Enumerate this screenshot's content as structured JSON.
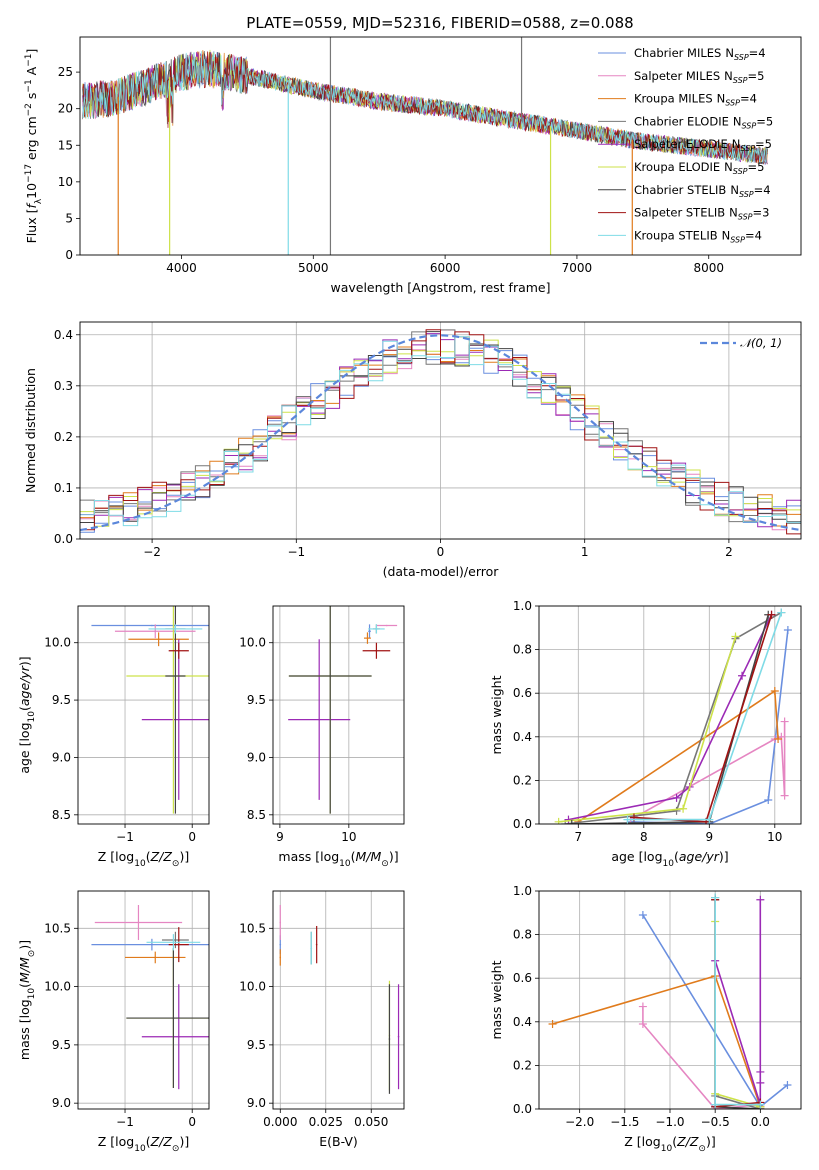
{
  "title": "PLATE=0559, MJD=52316, FIBERID=0588, z=0.088",
  "colors": {
    "Chabrier MILES": "#6a8fdf",
    "Salpeter MILES": "#e586c2",
    "Kroupa MILES": "#e07b1c",
    "Chabrier ELODIE": "#777777",
    "Salpeter ELODIE": "#9b2ab5",
    "Kroupa ELODIE": "#cde24a",
    "Chabrier STELIB": "#444444",
    "Salpeter STELIB": "#a11313",
    "Kroupa STELIB": "#7fdbe6"
  },
  "chart_data": [
    {
      "id": "spectrum",
      "type": "line",
      "xlabel": "wavelength [Angstrom, rest frame]",
      "ylabel": "Flux [f_λ10^-17 erg cm^-2 s^-1 A^-1]",
      "xlim": [
        3230,
        8700
      ],
      "ylim": [
        0,
        29.8
      ],
      "xticks": [
        "4000",
        "5000",
        "6000",
        "7000",
        "8000"
      ],
      "xtick_values": [
        4000,
        5000,
        6000,
        7000,
        8000
      ],
      "yticks": [
        "0",
        "5",
        "10",
        "15",
        "20",
        "25"
      ],
      "ytick_values": [
        0,
        5,
        10,
        15,
        20,
        25
      ],
      "grid": false,
      "legend_position": "top-right",
      "legend": [
        {
          "name": "Chabrier MILES",
          "sub": "N",
          "subscript": "SSP",
          "eq": "=4"
        },
        {
          "name": "Salpeter MILES",
          "sub": "N",
          "subscript": "SSP",
          "eq": "=5"
        },
        {
          "name": "Kroupa MILES",
          "sub": "N",
          "subscript": "SSP",
          "eq": "=4"
        },
        {
          "name": "Chabrier ELODIE",
          "sub": "N",
          "subscript": "SSP",
          "eq": "=5"
        },
        {
          "name": "Salpeter ELODIE",
          "sub": "N",
          "subscript": "SSP",
          "eq": "=5"
        },
        {
          "name": "Kroupa ELODIE",
          "sub": "N",
          "subscript": "SSP",
          "eq": "=5"
        },
        {
          "name": "Chabrier STELIB",
          "sub": "N",
          "subscript": "SSP",
          "eq": "=4"
        },
        {
          "name": "Salpeter STELIB",
          "sub": "N",
          "subscript": "SSP",
          "eq": "=3"
        },
        {
          "name": "Kroupa STELIB",
          "sub": "N",
          "subscript": "SSP",
          "eq": "=4"
        }
      ],
      "continuum": {
        "x": [
          3250,
          3500,
          3800,
          4000,
          4200,
          4500,
          5000,
          5500,
          6000,
          6500,
          7000,
          7500,
          8000,
          8450
        ],
        "y": [
          21.0,
          21.5,
          23.5,
          25.0,
          25.5,
          24.5,
          22.5,
          21.0,
          20.0,
          18.5,
          17.0,
          15.5,
          14.5,
          13.5
        ]
      },
      "spikes": [
        {
          "x": 3520,
          "y": 0,
          "series": "Kroupa MILES"
        },
        {
          "x": 3910,
          "y": 0,
          "series": "Kroupa ELODIE"
        },
        {
          "x": 4810,
          "y": 0,
          "series": "Kroupa STELIB"
        },
        {
          "x": 5130,
          "y": 0,
          "series": "Chabrier ELODIE"
        },
        {
          "x": 5130,
          "y": 29.8,
          "series": "Chabrier ELODIE"
        },
        {
          "x": 6580,
          "y": 29.8,
          "series": "Chabrier ELODIE"
        },
        {
          "x": 6800,
          "y": 0,
          "series": "Kroupa ELODIE"
        },
        {
          "x": 7420,
          "y": 0,
          "series": "Kroupa MILES"
        }
      ]
    },
    {
      "id": "residuals",
      "type": "step",
      "xlabel": "(data-model)/error",
      "ylabel": "Normed distribution",
      "xlim": [
        -2.5,
        2.5
      ],
      "ylim": [
        0,
        0.425
      ],
      "xticks": [
        "−2",
        "−1",
        "0",
        "1",
        "2"
      ],
      "xtick_values": [
        -2,
        -1,
        0,
        1,
        2
      ],
      "yticks": [
        "0.0",
        "0.1",
        "0.2",
        "0.3",
        "0.4"
      ],
      "ytick_values": [
        0,
        0.1,
        0.2,
        0.3,
        0.4
      ],
      "grid": true,
      "legend_position": "top-right",
      "legend": [
        {
          "name": "𝒩(0, 1)",
          "style": "dashed",
          "color": "#5b87db"
        }
      ],
      "bin_width": 0.1,
      "normal_pdf": {
        "mean": 0,
        "std": 1
      }
    },
    {
      "id": "age_vs_Z",
      "type": "errorbar",
      "xlabel": "Z [log10(Z/Z⊙)]",
      "ylabel": "age [log10(age/yr)]",
      "xlim": [
        -1.7,
        0.25
      ],
      "ylim": [
        8.42,
        10.32
      ],
      "xticks": [
        "−1",
        "0"
      ],
      "xtick_values": [
        -1,
        0
      ],
      "yticks": [
        "8.5",
        "9.0",
        "9.5",
        "10.0"
      ],
      "ytick_values": [
        8.5,
        9.0,
        9.5,
        10.0
      ],
      "grid": true,
      "points": [
        {
          "series": "Chabrier MILES",
          "x": -0.6,
          "xerr": 0.9,
          "y": 10.15,
          "yerr": 0.0
        },
        {
          "series": "Salpeter MILES",
          "x": -0.55,
          "xerr": 0.6,
          "y": 10.1,
          "yerr": 0.06
        },
        {
          "series": "Kroupa MILES",
          "x": -0.5,
          "xerr": 0.45,
          "y": 10.03,
          "yerr": 0.06
        },
        {
          "series": "Chabrier ELODIE",
          "x": -0.25,
          "xerr": 0.15,
          "y": 10.12,
          "yerr": 0.04
        },
        {
          "series": "Salpeter ELODIE",
          "x": -0.2,
          "xerr": 0.55,
          "y": 9.33,
          "yerr": 0.7
        },
        {
          "series": "Kroupa ELODIE",
          "x": -0.28,
          "xerr": 0.7,
          "y": 9.71,
          "yerr": 1.2
        },
        {
          "series": "Chabrier STELIB",
          "x": -0.25,
          "xerr": 0.15,
          "y": 9.71,
          "yerr": 1.2
        },
        {
          "series": "Salpeter STELIB",
          "x": -0.2,
          "xerr": 0.15,
          "y": 9.93,
          "yerr": 0.07
        },
        {
          "series": "Kroupa STELIB",
          "x": -0.25,
          "xerr": 0.4,
          "y": 10.12,
          "yerr": 0.04
        }
      ]
    },
    {
      "id": "age_vs_mass",
      "type": "errorbar",
      "xlabel": "mass [log10(M/M⊙)]",
      "ylabel": "",
      "xlim": [
        8.9,
        10.8
      ],
      "ylim": [
        8.42,
        10.32
      ],
      "xticks": [
        "9",
        "10"
      ],
      "xtick_values": [
        9,
        10
      ],
      "yticks": [
        "8.5",
        "9.0",
        "9.5",
        "10.0"
      ],
      "ytick_values": [
        8.5,
        9.0,
        9.5,
        10.0
      ],
      "grid": true,
      "points": [
        {
          "series": "Chabrier MILES",
          "x": 10.3,
          "xerr": 0.02,
          "y": 10.1,
          "yerr": 0.06
        },
        {
          "series": "Salpeter MILES",
          "x": 10.55,
          "xerr": 0.15,
          "y": 10.15,
          "yerr": 0.0
        },
        {
          "series": "Kroupa MILES",
          "x": 10.27,
          "xerr": 0.05,
          "y": 10.04,
          "yerr": 0.05
        },
        {
          "series": "Chabrier ELODIE",
          "x": 10.4,
          "xerr": 0.05,
          "y": 10.12,
          "yerr": 0.04
        },
        {
          "series": "Salpeter ELODIE",
          "x": 9.57,
          "xerr": 0.45,
          "y": 9.33,
          "yerr": 0.7
        },
        {
          "series": "Kroupa ELODIE",
          "x": 9.73,
          "xerr": 0.6,
          "y": 9.71,
          "yerr": 1.2
        },
        {
          "series": "Chabrier STELIB",
          "x": 9.73,
          "xerr": 0.6,
          "y": 9.71,
          "yerr": 1.2
        },
        {
          "series": "Salpeter STELIB",
          "x": 10.4,
          "xerr": 0.2,
          "y": 9.93,
          "yerr": 0.07
        },
        {
          "series": "Kroupa STELIB",
          "x": 10.4,
          "xerr": 0.12,
          "y": 10.12,
          "yerr": 0.04
        }
      ]
    },
    {
      "id": "weight_vs_age",
      "type": "line",
      "xlabel": "age [log10(age/yr)]",
      "ylabel": "mass weight",
      "xlim": [
        6.4,
        10.4
      ],
      "ylim": [
        0,
        1
      ],
      "xticks": [
        "7",
        "8",
        "9",
        "10"
      ],
      "xtick_values": [
        7,
        8,
        9,
        10
      ],
      "yticks": [
        "0.0",
        "0.2",
        "0.4",
        "0.6",
        "0.8",
        "1.0"
      ],
      "ytick_values": [
        0,
        0.2,
        0.4,
        0.6,
        0.8,
        1.0
      ],
      "grid": true,
      "series": [
        {
          "name": "Chabrier MILES",
          "x": [
            7.8,
            9.0,
            9.9,
            10.2
          ],
          "y": [
            0.01,
            0.0,
            0.11,
            0.89
          ]
        },
        {
          "name": "Salpeter MILES",
          "x": [
            7.8,
            10.0,
            10.1,
            10.15,
            10.15
          ],
          "y": [
            0.02,
            0.39,
            0.4,
            0.13,
            0.47
          ]
        },
        {
          "name": "Kroupa MILES",
          "x": [
            7.0,
            10.0,
            10.05
          ],
          "y": [
            0.01,
            0.61,
            0.39
          ]
        },
        {
          "name": "Chabrier ELODIE",
          "x": [
            6.8,
            8.5,
            9.4,
            10.1
          ],
          "y": [
            0.0,
            0.06,
            0.85,
            0.97
          ]
        },
        {
          "name": "Salpeter ELODIE",
          "x": [
            6.85,
            8.5,
            8.7,
            9.5,
            9.95
          ],
          "y": [
            0.02,
            0.12,
            0.17,
            0.68,
            0.96
          ]
        },
        {
          "name": "Kroupa ELODIE",
          "x": [
            6.7,
            8.6,
            9.4
          ],
          "y": [
            0.01,
            0.07,
            0.86
          ]
        },
        {
          "name": "Chabrier STELIB",
          "x": [
            6.9,
            9.0,
            9.9
          ],
          "y": [
            0.0,
            0.01,
            0.96
          ]
        },
        {
          "name": "Salpeter STELIB",
          "x": [
            7.85,
            8.95,
            9.95
          ],
          "y": [
            0.03,
            0.01,
            0.96
          ]
        },
        {
          "name": "Kroupa STELIB",
          "x": [
            7.75,
            9.0,
            10.1
          ],
          "y": [
            0.02,
            0.02,
            0.97
          ]
        }
      ]
    },
    {
      "id": "mass_vs_Z",
      "type": "errorbar",
      "xlabel": "Z [log10(Z/Z⊙)]",
      "ylabel": "mass [log10(M/M⊙)]",
      "xlim": [
        -1.7,
        0.25
      ],
      "ylim": [
        8.95,
        10.82
      ],
      "xticks": [
        "−1",
        "0"
      ],
      "xtick_values": [
        -1,
        0
      ],
      "yticks": [
        "9.0",
        "9.5",
        "10.0",
        "10.5"
      ],
      "ytick_values": [
        9.0,
        9.5,
        10.0,
        10.5
      ],
      "grid": true,
      "points": [
        {
          "series": "Chabrier MILES",
          "x": -0.6,
          "xerr": 0.9,
          "y": 10.36,
          "yerr": 0.05
        },
        {
          "series": "Salpeter MILES",
          "x": -0.8,
          "xerr": 0.65,
          "y": 10.55,
          "yerr": 0.15
        },
        {
          "series": "Kroupa MILES",
          "x": -0.55,
          "xerr": 0.45,
          "y": 10.25,
          "yerr": 0.05
        },
        {
          "series": "Chabrier ELODIE",
          "x": -0.25,
          "xerr": 0.2,
          "y": 10.4,
          "yerr": 0.07
        },
        {
          "series": "Salpeter ELODIE",
          "x": -0.2,
          "xerr": 0.55,
          "y": 9.57,
          "yerr": 0.45
        },
        {
          "series": "Kroupa ELODIE",
          "x": -0.28,
          "xerr": 0.7,
          "y": 9.73,
          "yerr": 0.6
        },
        {
          "series": "Chabrier STELIB",
          "x": -0.28,
          "xerr": 0.7,
          "y": 9.73,
          "yerr": 0.6
        },
        {
          "series": "Salpeter STELIB",
          "x": -0.2,
          "xerr": 0.15,
          "y": 10.36,
          "yerr": 0.15
        },
        {
          "series": "Kroupa STELIB",
          "x": -0.28,
          "xerr": 0.4,
          "y": 10.38,
          "yerr": 0.07
        }
      ]
    },
    {
      "id": "mass_vs_EBV",
      "type": "errorbar",
      "xlabel": "E(B-V)",
      "ylabel": "",
      "xlim": [
        -0.004,
        0.068
      ],
      "ylim": [
        8.95,
        10.82
      ],
      "xticks": [
        "0.000",
        "0.025",
        "0.050"
      ],
      "xtick_values": [
        0,
        0.025,
        0.05
      ],
      "yticks": [
        "9.0",
        "9.5",
        "10.0",
        "10.5"
      ],
      "ytick_values": [
        9.0,
        9.5,
        10.0,
        10.5
      ],
      "grid": true,
      "points": [
        {
          "series": "Chabrier MILES",
          "x": 0.0,
          "xerr": 0.0,
          "y": 10.36,
          "yerr": 0.08
        },
        {
          "series": "Salpeter MILES",
          "x": 0.0,
          "xerr": 0.0,
          "y": 10.55,
          "yerr": 0.15
        },
        {
          "series": "Kroupa MILES",
          "x": 0.0,
          "xerr": 0.0,
          "y": 10.25,
          "yerr": 0.07
        },
        {
          "series": "Chabrier ELODIE",
          "x": 0.017,
          "xerr": 0.0,
          "y": 10.33,
          "yerr": 0.14
        },
        {
          "series": "Salpeter ELODIE",
          "x": 0.065,
          "xerr": 0.0,
          "y": 9.57,
          "yerr": 0.45
        },
        {
          "series": "Kroupa ELODIE",
          "x": 0.06,
          "xerr": 0.0,
          "y": 9.58,
          "yerr": 0.47
        },
        {
          "series": "Chabrier STELIB",
          "x": 0.06,
          "xerr": 0.0,
          "y": 9.55,
          "yerr": 0.47
        },
        {
          "series": "Salpeter STELIB",
          "x": 0.02,
          "xerr": 0.0,
          "y": 10.36,
          "yerr": 0.16
        },
        {
          "series": "Kroupa STELIB",
          "x": 0.017,
          "xerr": 0.0,
          "y": 10.33,
          "yerr": 0.14
        }
      ]
    },
    {
      "id": "weight_vs_Z",
      "type": "line",
      "xlabel": "Z [log10(Z/Z⊙)]",
      "ylabel": "mass weight",
      "xlim": [
        -2.45,
        0.45
      ],
      "ylim": [
        0,
        1
      ],
      "xticks": [
        "−2.0",
        "−1.5",
        "−1.0",
        "−0.5",
        "0.0"
      ],
      "xtick_values": [
        -2.0,
        -1.5,
        -1.0,
        -0.5,
        0.0
      ],
      "yticks": [
        "0.0",
        "0.2",
        "0.4",
        "0.6",
        "0.8",
        "1.0"
      ],
      "ytick_values": [
        0,
        0.2,
        0.4,
        0.6,
        0.8,
        1.0
      ],
      "grid": true,
      "series": [
        {
          "name": "Chabrier MILES",
          "x": [
            -1.3,
            0.0,
            0.3
          ],
          "y": [
            0.89,
            0.01,
            0.11
          ]
        },
        {
          "name": "Salpeter MILES",
          "x": [
            -1.3,
            -1.3,
            -0.5,
            0.0
          ],
          "y": [
            0.47,
            0.39,
            0.0,
            0.02
          ]
        },
        {
          "name": "Kroupa MILES",
          "x": [
            -2.3,
            -0.5,
            0.0,
            0.0
          ],
          "y": [
            0.39,
            0.61,
            0.01,
            0.0
          ]
        },
        {
          "name": "Chabrier ELODIE",
          "x": [
            -0.5,
            -0.5,
            0.0
          ],
          "y": [
            0.97,
            0.06,
            0.0
          ]
        },
        {
          "name": "Salpeter ELODIE",
          "x": [
            -0.5,
            0.0,
            0.0,
            0.0,
            0.0
          ],
          "y": [
            0.68,
            0.02,
            0.12,
            0.17,
            0.96
          ]
        },
        {
          "name": "Kroupa ELODIE",
          "x": [
            -0.5,
            -0.5,
            0.0
          ],
          "y": [
            0.86,
            0.07,
            0.01
          ]
        },
        {
          "name": "Chabrier STELIB",
          "x": [
            -0.5,
            -0.5,
            0.0
          ],
          "y": [
            0.96,
            0.01,
            0.0
          ]
        },
        {
          "name": "Salpeter STELIB",
          "x": [
            -0.5,
            -0.5,
            0.0
          ],
          "y": [
            0.96,
            0.01,
            0.03
          ]
        },
        {
          "name": "Kroupa STELIB",
          "x": [
            -0.5,
            -0.5,
            0.0
          ],
          "y": [
            0.97,
            0.02,
            0.02
          ]
        }
      ]
    }
  ]
}
